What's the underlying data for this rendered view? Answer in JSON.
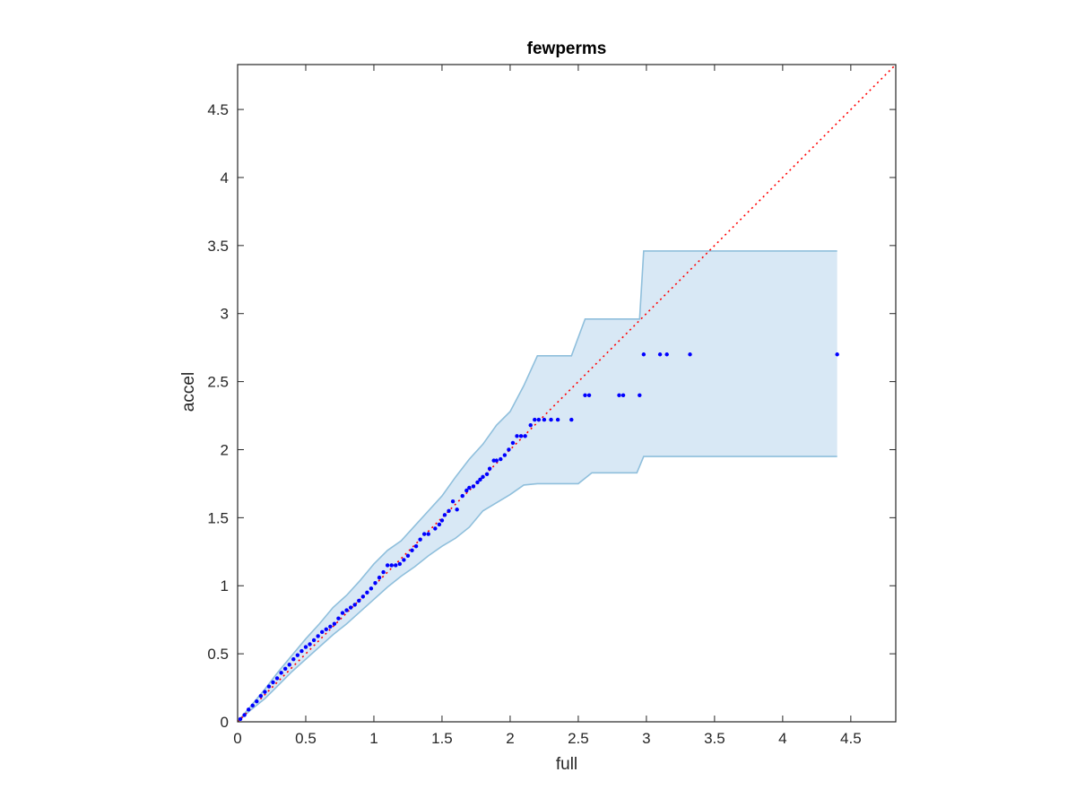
{
  "chart_data": {
    "type": "scatter",
    "title": "fewperms",
    "xlabel": "full",
    "ylabel": "accel",
    "xlim": [
      0,
      4.83
    ],
    "ylim": [
      0,
      4.83
    ],
    "xticks": [
      "0",
      "0.5",
      "1",
      "1.5",
      "2",
      "2.5",
      "3",
      "3.5",
      "4",
      "4.5"
    ],
    "yticks": [
      "0",
      "0.5",
      "1",
      "1.5",
      "2",
      "2.5",
      "3",
      "3.5",
      "4",
      "4.5"
    ],
    "grid": false,
    "legend": "none",
    "colors": {
      "points": "#0000ff",
      "reference_line": "#ff0000",
      "band_fill": "#d8e8f5",
      "band_edge": "#8fbfdc",
      "axes": "#262626"
    },
    "reference_line": {
      "from": [
        0,
        0
      ],
      "to": [
        4.83,
        4.83
      ],
      "style": "dotted"
    },
    "band": {
      "upper": [
        [
          0,
          0
        ],
        [
          0.1,
          0.12
        ],
        [
          0.2,
          0.24
        ],
        [
          0.3,
          0.37
        ],
        [
          0.4,
          0.49
        ],
        [
          0.5,
          0.61
        ],
        [
          0.6,
          0.72
        ],
        [
          0.7,
          0.84
        ],
        [
          0.8,
          0.93
        ],
        [
          0.9,
          1.04
        ],
        [
          1.0,
          1.16
        ],
        [
          1.1,
          1.26
        ],
        [
          1.2,
          1.33
        ],
        [
          1.3,
          1.44
        ],
        [
          1.4,
          1.55
        ],
        [
          1.5,
          1.66
        ],
        [
          1.6,
          1.8
        ],
        [
          1.7,
          1.93
        ],
        [
          1.8,
          2.04
        ],
        [
          1.9,
          2.18
        ],
        [
          2.0,
          2.28
        ],
        [
          2.1,
          2.47
        ],
        [
          2.2,
          2.69
        ],
        [
          2.45,
          2.69
        ],
        [
          2.55,
          2.96
        ],
        [
          2.95,
          2.96
        ],
        [
          2.98,
          3.46
        ],
        [
          4.4,
          3.46
        ]
      ],
      "lower": [
        [
          0,
          0
        ],
        [
          0.1,
          0.09
        ],
        [
          0.2,
          0.17
        ],
        [
          0.3,
          0.27
        ],
        [
          0.4,
          0.37
        ],
        [
          0.5,
          0.46
        ],
        [
          0.6,
          0.55
        ],
        [
          0.7,
          0.64
        ],
        [
          0.8,
          0.72
        ],
        [
          0.9,
          0.81
        ],
        [
          1.0,
          0.9
        ],
        [
          1.1,
          0.99
        ],
        [
          1.2,
          1.07
        ],
        [
          1.3,
          1.14
        ],
        [
          1.4,
          1.22
        ],
        [
          1.5,
          1.29
        ],
        [
          1.6,
          1.35
        ],
        [
          1.7,
          1.43
        ],
        [
          1.8,
          1.55
        ],
        [
          1.9,
          1.61
        ],
        [
          2.0,
          1.67
        ],
        [
          2.1,
          1.74
        ],
        [
          2.2,
          1.75
        ],
        [
          2.5,
          1.75
        ],
        [
          2.6,
          1.83
        ],
        [
          2.93,
          1.83
        ],
        [
          2.98,
          1.95
        ],
        [
          4.4,
          1.95
        ]
      ]
    },
    "series": [
      {
        "values": [
          [
            0.02,
            0.02
          ],
          [
            0.05,
            0.05
          ],
          [
            0.08,
            0.09
          ],
          [
            0.11,
            0.12
          ],
          [
            0.14,
            0.15
          ],
          [
            0.17,
            0.19
          ],
          [
            0.2,
            0.22
          ],
          [
            0.23,
            0.26
          ],
          [
            0.26,
            0.29
          ],
          [
            0.29,
            0.32
          ],
          [
            0.32,
            0.36
          ],
          [
            0.35,
            0.39
          ],
          [
            0.38,
            0.42
          ],
          [
            0.41,
            0.46
          ],
          [
            0.44,
            0.49
          ],
          [
            0.47,
            0.52
          ],
          [
            0.5,
            0.55
          ],
          [
            0.53,
            0.57
          ],
          [
            0.56,
            0.6
          ],
          [
            0.59,
            0.63
          ],
          [
            0.62,
            0.66
          ],
          [
            0.65,
            0.68
          ],
          [
            0.68,
            0.7
          ],
          [
            0.71,
            0.72
          ],
          [
            0.74,
            0.76
          ],
          [
            0.77,
            0.8
          ],
          [
            0.8,
            0.82
          ],
          [
            0.83,
            0.84
          ],
          [
            0.86,
            0.86
          ],
          [
            0.89,
            0.89
          ],
          [
            0.92,
            0.92
          ],
          [
            0.95,
            0.95
          ],
          [
            0.98,
            0.98
          ],
          [
            1.01,
            1.02
          ],
          [
            1.04,
            1.06
          ],
          [
            1.07,
            1.1
          ],
          [
            1.1,
            1.15
          ],
          [
            1.13,
            1.15
          ],
          [
            1.16,
            1.15
          ],
          [
            1.19,
            1.16
          ],
          [
            1.22,
            1.19
          ],
          [
            1.25,
            1.22
          ],
          [
            1.28,
            1.26
          ],
          [
            1.31,
            1.29
          ],
          [
            1.34,
            1.34
          ],
          [
            1.37,
            1.38
          ],
          [
            1.4,
            1.38
          ],
          [
            1.45,
            1.42
          ],
          [
            1.48,
            1.45
          ],
          [
            1.5,
            1.48
          ],
          [
            1.52,
            1.52
          ],
          [
            1.55,
            1.55
          ],
          [
            1.58,
            1.62
          ],
          [
            1.61,
            1.56
          ],
          [
            1.65,
            1.66
          ],
          [
            1.68,
            1.7
          ],
          [
            1.7,
            1.72
          ],
          [
            1.73,
            1.73
          ],
          [
            1.76,
            1.76
          ],
          [
            1.78,
            1.78
          ],
          [
            1.8,
            1.8
          ],
          [
            1.83,
            1.82
          ],
          [
            1.85,
            1.86
          ],
          [
            1.88,
            1.92
          ],
          [
            1.9,
            1.92
          ],
          [
            1.93,
            1.93
          ],
          [
            1.96,
            1.96
          ],
          [
            1.99,
            2.0
          ],
          [
            2.02,
            2.05
          ],
          [
            2.05,
            2.1
          ],
          [
            2.08,
            2.1
          ],
          [
            2.11,
            2.1
          ],
          [
            2.15,
            2.18
          ],
          [
            2.18,
            2.22
          ],
          [
            2.21,
            2.22
          ],
          [
            2.25,
            2.22
          ],
          [
            2.3,
            2.22
          ],
          [
            2.35,
            2.22
          ],
          [
            2.45,
            2.22
          ],
          [
            2.55,
            2.4
          ],
          [
            2.58,
            2.4
          ],
          [
            2.8,
            2.4
          ],
          [
            2.83,
            2.4
          ],
          [
            2.95,
            2.4
          ],
          [
            2.98,
            2.7
          ],
          [
            3.1,
            2.7
          ],
          [
            3.15,
            2.7
          ],
          [
            3.32,
            2.7
          ],
          [
            4.4,
            2.7
          ]
        ]
      }
    ]
  }
}
